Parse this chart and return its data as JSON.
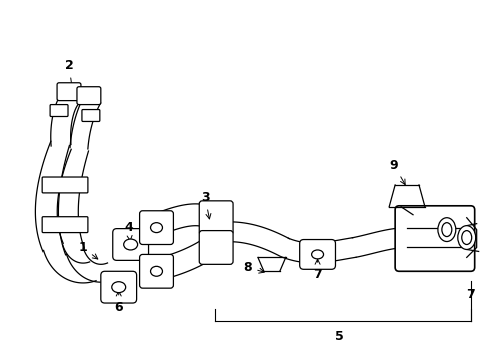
{
  "background_color": "#ffffff",
  "line_color": "#000000",
  "figsize": [
    4.89,
    3.6
  ],
  "dpi": 100,
  "label_fs": 9
}
